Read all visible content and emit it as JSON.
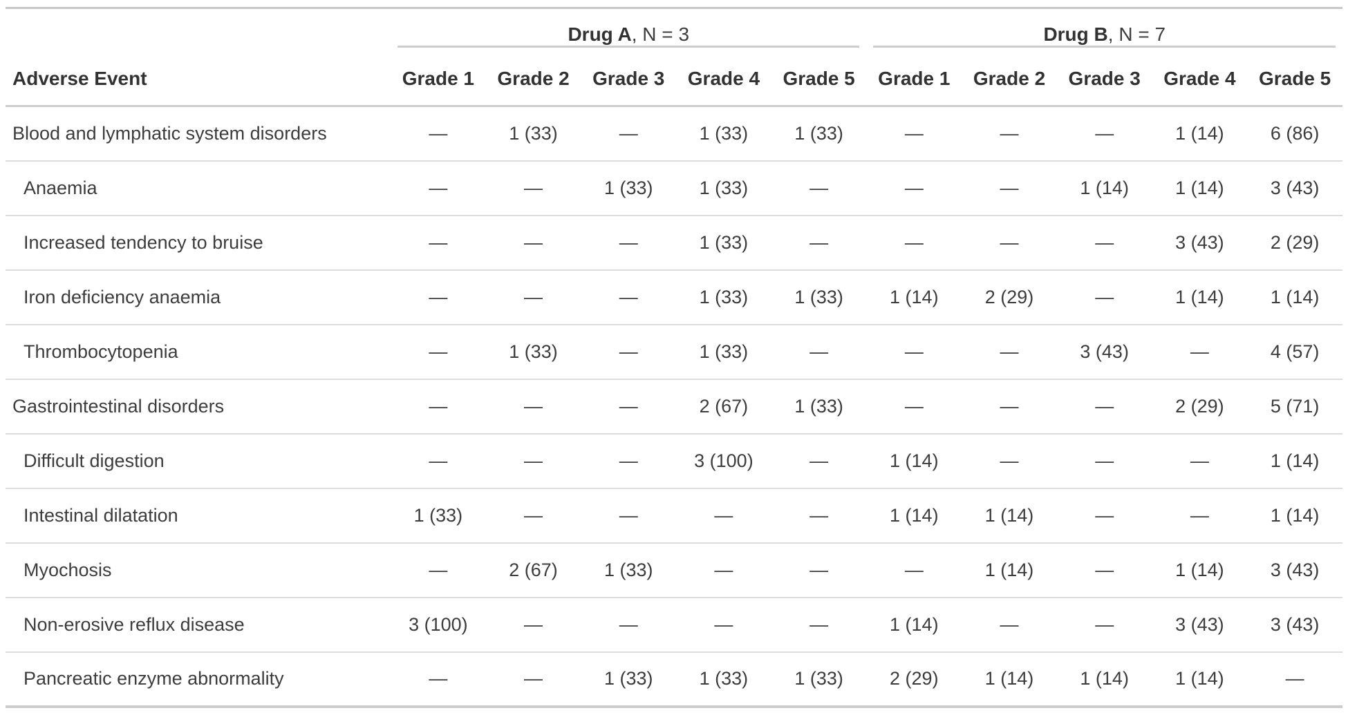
{
  "chart_data": {
    "type": "table",
    "row_header": "Adverse Event",
    "spanners": [
      {
        "name": "Drug A",
        "n_label": ", N = 3"
      },
      {
        "name": "Drug B",
        "n_label": ", N = 7"
      }
    ],
    "grade_columns": [
      "Grade 1",
      "Grade 2",
      "Grade 3",
      "Grade 4",
      "Grade 5"
    ],
    "empty_cell": "—",
    "rows": [
      {
        "label": "Blood and lymphatic system disorders",
        "indent": false,
        "drug_a": [
          "—",
          "1 (33)",
          "—",
          "1 (33)",
          "1 (33)"
        ],
        "drug_b": [
          "—",
          "—",
          "—",
          "1 (14)",
          "6 (86)"
        ]
      },
      {
        "label": "Anaemia",
        "indent": true,
        "drug_a": [
          "—",
          "—",
          "1 (33)",
          "1 (33)",
          "—"
        ],
        "drug_b": [
          "—",
          "—",
          "1 (14)",
          "1 (14)",
          "3 (43)"
        ]
      },
      {
        "label": "Increased tendency to bruise",
        "indent": true,
        "drug_a": [
          "—",
          "—",
          "—",
          "1 (33)",
          "—"
        ],
        "drug_b": [
          "—",
          "—",
          "—",
          "3 (43)",
          "2 (29)"
        ]
      },
      {
        "label": "Iron deficiency anaemia",
        "indent": true,
        "drug_a": [
          "—",
          "—",
          "—",
          "1 (33)",
          "1 (33)"
        ],
        "drug_b": [
          "1 (14)",
          "2 (29)",
          "—",
          "1 (14)",
          "1 (14)"
        ]
      },
      {
        "label": "Thrombocytopenia",
        "indent": true,
        "drug_a": [
          "—",
          "1 (33)",
          "—",
          "1 (33)",
          "—"
        ],
        "drug_b": [
          "—",
          "—",
          "3 (43)",
          "—",
          "4 (57)"
        ]
      },
      {
        "label": "Gastrointestinal disorders",
        "indent": false,
        "drug_a": [
          "—",
          "—",
          "—",
          "2 (67)",
          "1 (33)"
        ],
        "drug_b": [
          "—",
          "—",
          "—",
          "2 (29)",
          "5 (71)"
        ]
      },
      {
        "label": "Difficult digestion",
        "indent": true,
        "drug_a": [
          "—",
          "—",
          "—",
          "3 (100)",
          "—"
        ],
        "drug_b": [
          "1 (14)",
          "—",
          "—",
          "—",
          "1 (14)"
        ]
      },
      {
        "label": "Intestinal dilatation",
        "indent": true,
        "drug_a": [
          "1 (33)",
          "—",
          "—",
          "—",
          "—"
        ],
        "drug_b": [
          "1 (14)",
          "1 (14)",
          "—",
          "—",
          "1 (14)"
        ]
      },
      {
        "label": "Myochosis",
        "indent": true,
        "drug_a": [
          "—",
          "2 (67)",
          "1 (33)",
          "—",
          "—"
        ],
        "drug_b": [
          "—",
          "1 (14)",
          "—",
          "1 (14)",
          "3 (43)"
        ]
      },
      {
        "label": "Non-erosive reflux disease",
        "indent": true,
        "drug_a": [
          "3 (100)",
          "—",
          "—",
          "—",
          "—"
        ],
        "drug_b": [
          "1 (14)",
          "—",
          "—",
          "3 (43)",
          "3 (43)"
        ]
      },
      {
        "label": "Pancreatic enzyme abnormality",
        "indent": true,
        "drug_a": [
          "—",
          "—",
          "1 (33)",
          "1 (33)",
          "1 (33)"
        ],
        "drug_b": [
          "2 (29)",
          "1 (14)",
          "1 (14)",
          "1 (14)",
          "—"
        ]
      }
    ],
    "colors": {
      "heavy_border": "#c8c8c8",
      "light_border": "#dcdcdc",
      "header_text": "#323232",
      "body_text": "#3c3c3c"
    }
  }
}
